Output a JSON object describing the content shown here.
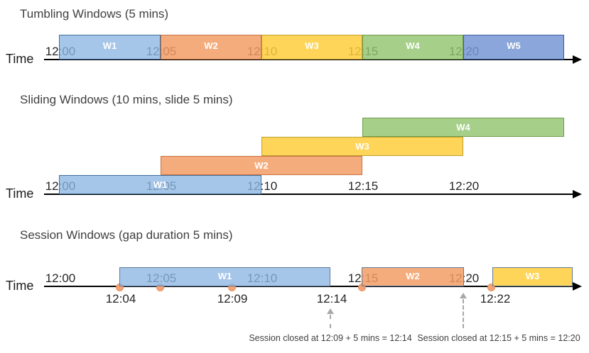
{
  "palette": {
    "blue": {
      "fill": "rgba(140,181,227,0.78)",
      "border": "#41719C"
    },
    "orange": {
      "fill": "rgba(242,156,99,0.84)",
      "border": "#C97342"
    },
    "yellow": {
      "fill": "rgba(255,206,60,0.85)",
      "border": "#BDA030"
    },
    "green": {
      "fill": "rgba(146,196,112,0.82)",
      "border": "#6F9C4C"
    },
    "blue_dark": {
      "fill": "rgba(118,150,212,0.85)",
      "border": "#3D5EA0"
    }
  },
  "colors": {
    "axis": "#000000",
    "event_dot_fill": "#F3A376",
    "event_dot_border": "#E9905F",
    "dashed_arrow_gray": "#A8A8A8",
    "session_box_border": "#5E7B9B"
  },
  "sections": [
    {
      "title": "Tumbling Windows (5 mins)",
      "time_axis_label": "Time",
      "ticks": [
        "12:00",
        "12:05",
        "12:10",
        "12:15",
        "12:20"
      ],
      "windows": [
        {
          "label": "W1",
          "start": "12:00",
          "end": "12:05",
          "color": "blue"
        },
        {
          "label": "W2",
          "start": "12:05",
          "end": "12:10",
          "color": "orange"
        },
        {
          "label": "W3",
          "start": "12:10",
          "end": "12:15",
          "color": "yellow"
        },
        {
          "label": "W4",
          "start": "12:15",
          "end": "12:20",
          "color": "green"
        },
        {
          "label": "W5",
          "start": "12:20",
          "end": "",
          "color": "blue_dark"
        }
      ]
    },
    {
      "title": "Sliding Windows (10 mins, slide 5 mins)",
      "time_axis_label": "Time",
      "ticks": [
        "12:00",
        "12:05",
        "12:10",
        "12:15",
        "12:20"
      ],
      "windows": [
        {
          "label": "W1",
          "start": "12:00",
          "end": "12:10",
          "color": "blue"
        },
        {
          "label": "W2",
          "start": "12:05",
          "end": "12:15",
          "color": "orange"
        },
        {
          "label": "W3",
          "start": "12:10",
          "end": "12:20",
          "color": "yellow"
        },
        {
          "label": "W4",
          "start": "12:15",
          "end": "",
          "color": "green"
        }
      ]
    },
    {
      "title": "Session Windows (gap duration 5 mins)",
      "time_axis_label": "Time",
      "ticks": [
        "12:00",
        "12:05",
        "12:10",
        "12:15",
        "12:20"
      ],
      "windows": [
        {
          "label": "W1",
          "start": "12:04",
          "end": "12:14",
          "color": "blue"
        },
        {
          "label": "W2",
          "start": "12:15",
          "end": "12:20",
          "color": "orange"
        },
        {
          "label": "W3",
          "start": "12:22",
          "end": "",
          "color": "yellow"
        }
      ],
      "below_labels": [
        "12:04",
        "12:09",
        "12:14",
        "12:22"
      ],
      "annotations": [
        "Session closed at 12:09 + 5 mins = 12:14",
        "Session closed at 12:15 + 5 mins = 12:20"
      ]
    }
  ]
}
